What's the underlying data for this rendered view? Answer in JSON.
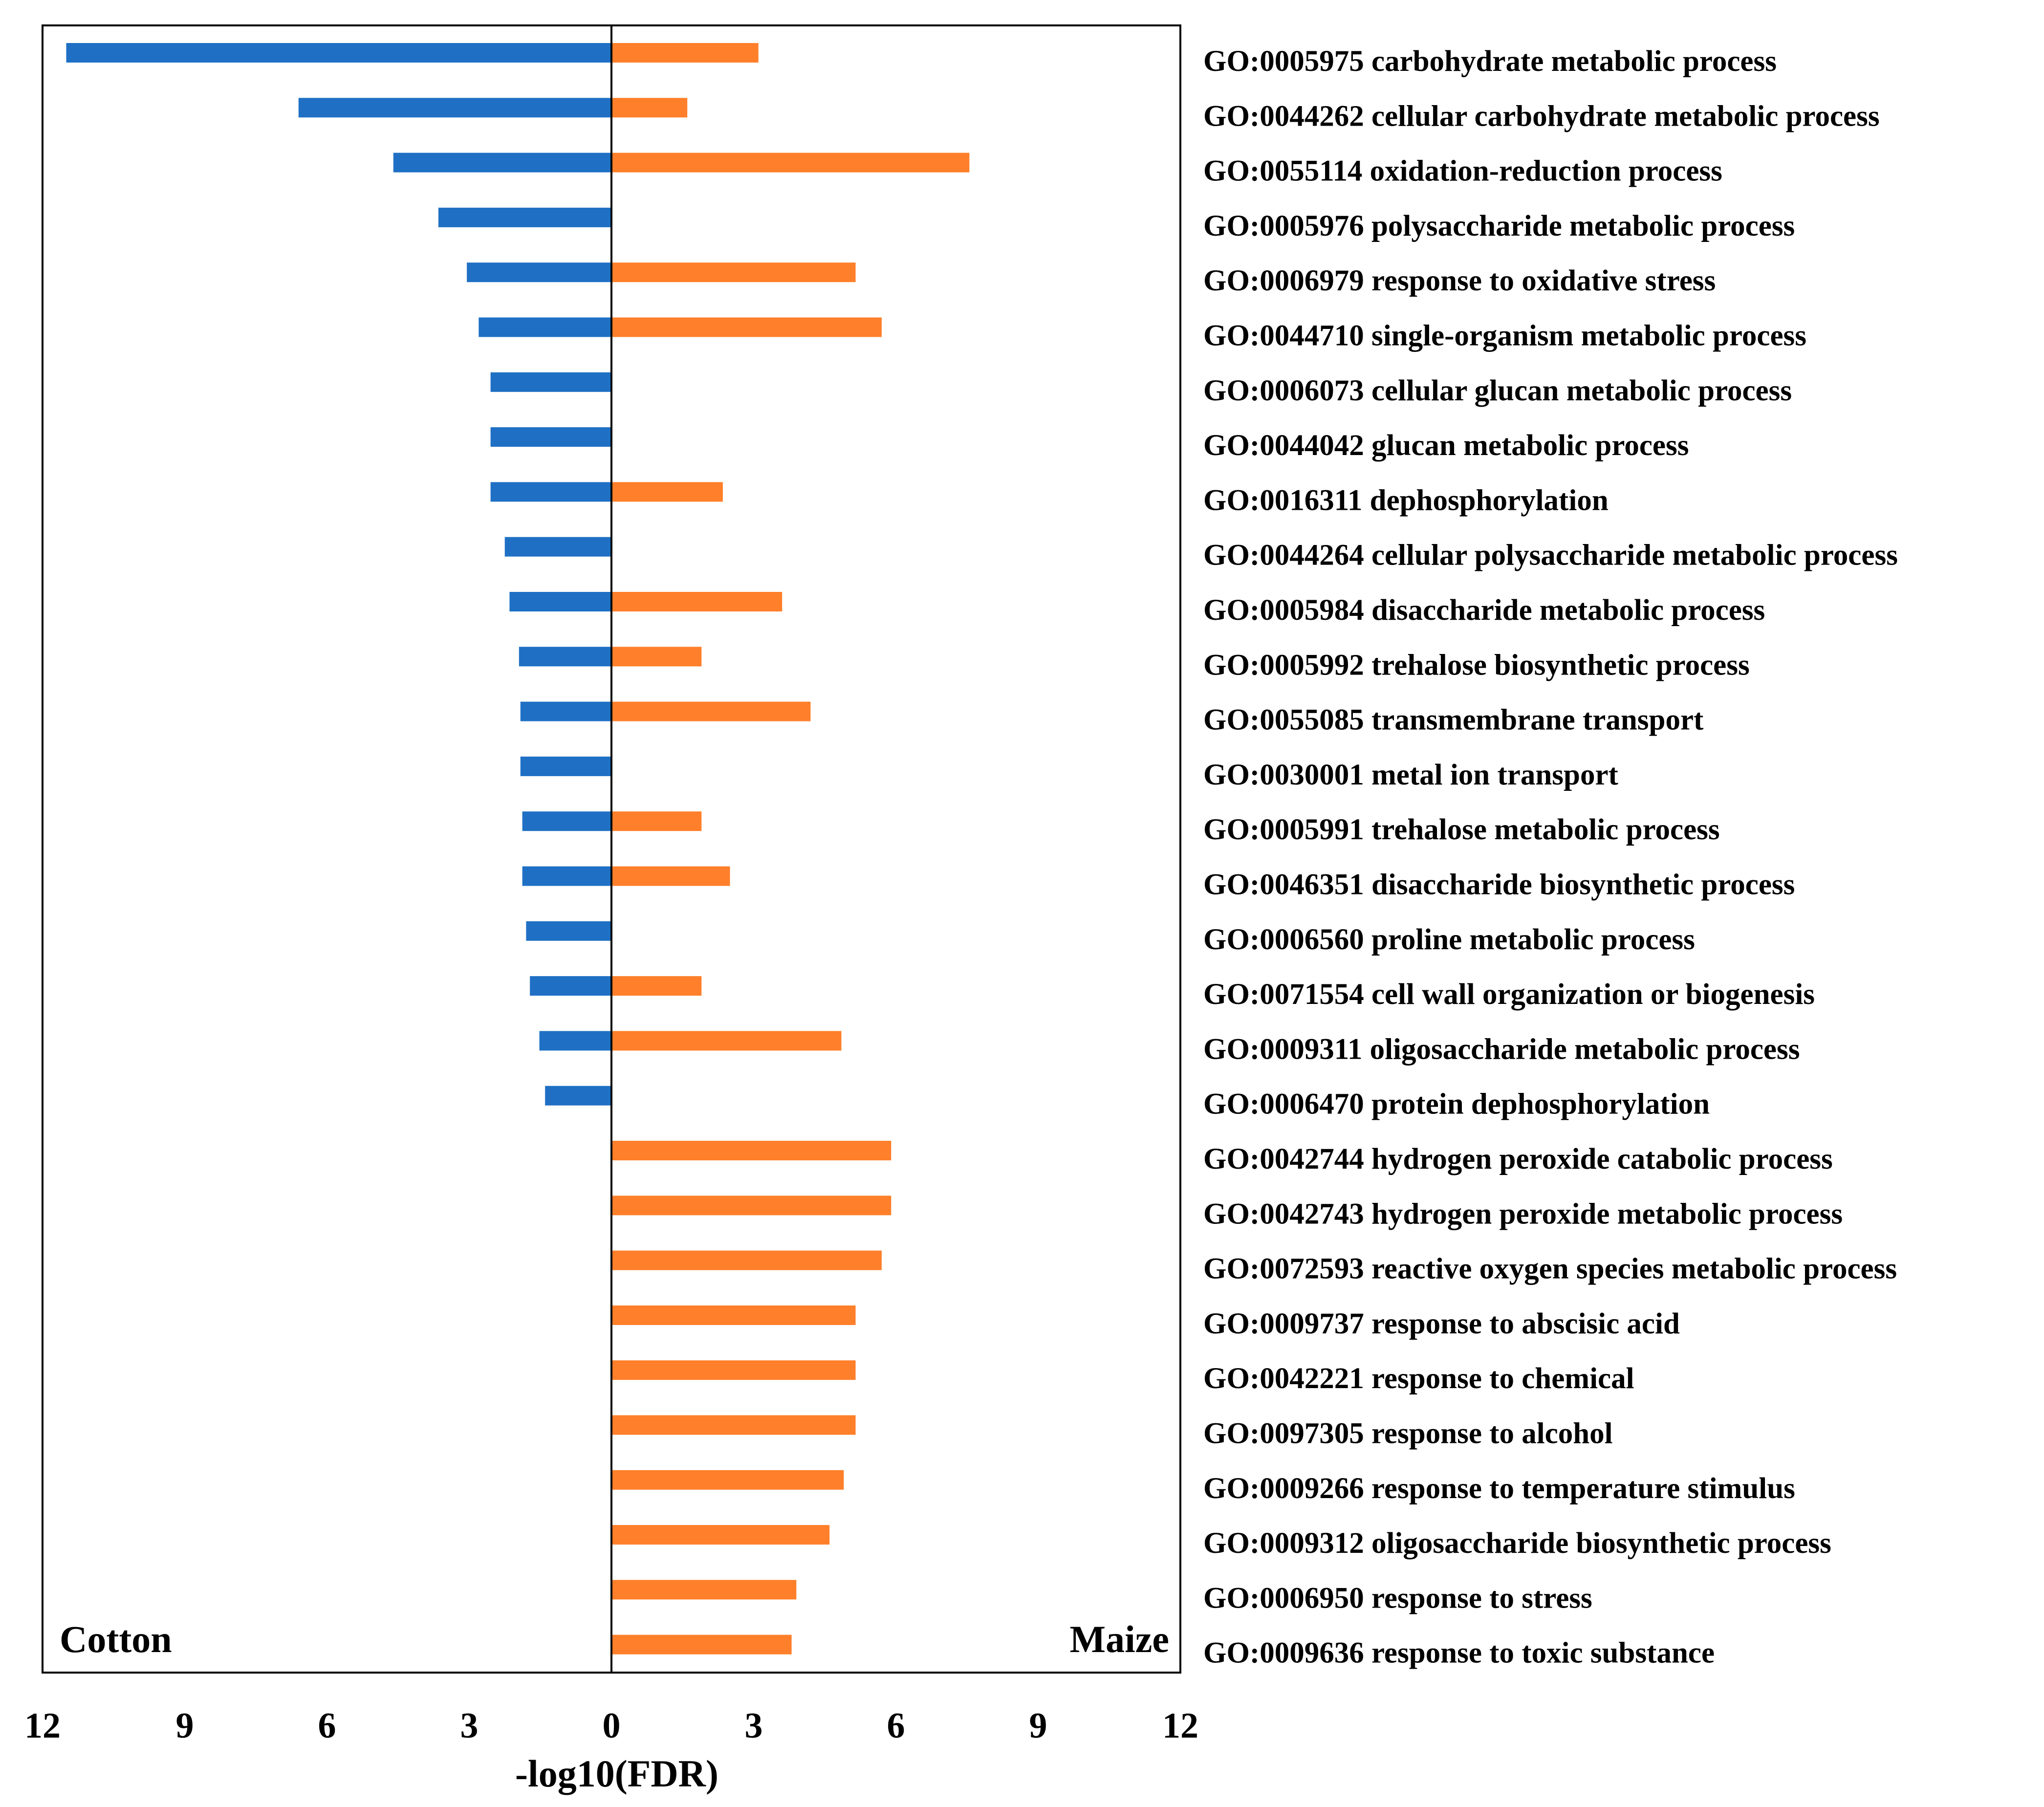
{
  "chart_data": {
    "type": "bar",
    "orientation": "horizontal-diverging",
    "xlabel": "-log10(FDR)",
    "xlim": [
      -12,
      12
    ],
    "ticks": [
      -12,
      -9,
      -6,
      -3,
      0,
      3,
      6,
      9,
      12
    ],
    "tick_labels": [
      "12",
      "9",
      "6",
      "3",
      "0",
      "3",
      "6",
      "9",
      "12"
    ],
    "panel_labels": {
      "left": "Cotton",
      "right": "Maize"
    },
    "colors": {
      "Cotton": "#1F70C4",
      "Maize": "#FF7F2A"
    },
    "series": [
      {
        "name": "Cotton",
        "direction": "left",
        "values": [
          11.5,
          6.6,
          4.6,
          3.65,
          3.05,
          2.8,
          2.55,
          2.55,
          2.55,
          2.25,
          2.15,
          1.95,
          1.92,
          1.92,
          1.88,
          1.88,
          1.8,
          1.72,
          1.52,
          1.4,
          null,
          null,
          null,
          null,
          null,
          null,
          null,
          null,
          null,
          null
        ]
      },
      {
        "name": "Maize",
        "direction": "right",
        "values": [
          3.1,
          1.6,
          7.55,
          null,
          5.15,
          5.7,
          null,
          null,
          2.35,
          null,
          3.6,
          1.9,
          4.2,
          null,
          1.9,
          2.5,
          null,
          1.9,
          4.85,
          null,
          5.9,
          5.9,
          5.7,
          5.15,
          5.15,
          5.15,
          4.9,
          4.6,
          3.9,
          3.8
        ]
      }
    ],
    "categories": [
      "GO:0005975 carbohydrate metabolic process",
      "GO:0044262 cellular carbohydrate metabolic process",
      "GO:0055114 oxidation-reduction process",
      "GO:0005976 polysaccharide metabolic process",
      "GO:0006979 response to oxidative stress",
      "GO:0044710 single-organism metabolic process",
      "GO:0006073 cellular glucan metabolic process",
      "GO:0044042 glucan metabolic process",
      "GO:0016311 dephosphorylation",
      "GO:0044264 cellular polysaccharide metabolic process",
      "GO:0005984 disaccharide metabolic process",
      "GO:0005992 trehalose biosynthetic process",
      "GO:0055085 transmembrane transport",
      "GO:0030001 metal ion transport",
      "GO:0005991 trehalose metabolic process",
      "GO:0046351 disaccharide biosynthetic process",
      "GO:0006560 proline metabolic process",
      "GO:0071554 cell wall organization or biogenesis",
      "GO:0009311 oligosaccharide metabolic process",
      "GO:0006470 protein dephosphorylation",
      "GO:0042744 hydrogen peroxide catabolic process",
      "GO:0042743 hydrogen peroxide metabolic process",
      "GO:0072593 reactive oxygen species metabolic process",
      "GO:0009737 response to abscisic acid",
      "GO:0042221 response to chemical",
      "GO:0097305 response to alcohol",
      "GO:0009266 response to temperature stimulus",
      "GO:0009312 oligosaccharide biosynthetic process",
      "GO:0006950 response to stress",
      "GO:0009636 response to toxic substance"
    ]
  }
}
